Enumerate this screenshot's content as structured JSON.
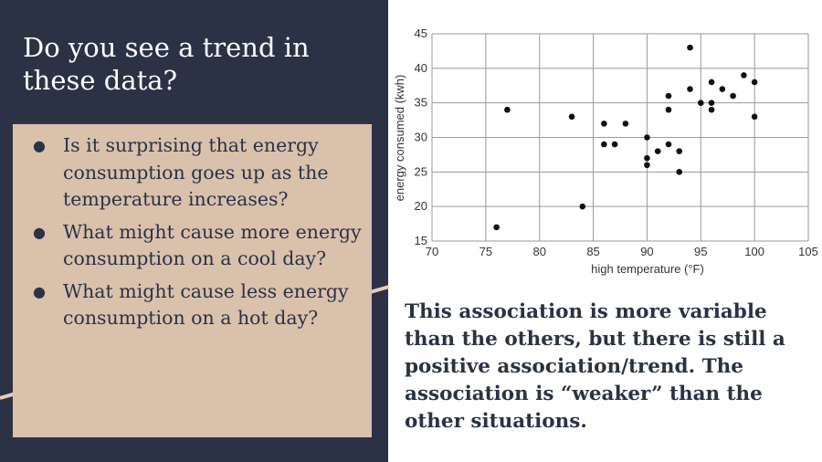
{
  "slide": {
    "title": "Do you see a trend in these data?",
    "questions": [
      "Is it surprising that energy consumption goes up as the temperature increases?",
      "What might cause more energy consumption on a cool day?",
      "What might cause less energy consumption on a hot day?"
    ],
    "conclusion": "This association is more variable than the others, but there is still a positive association/trend. The association is “weaker” than the other situations."
  },
  "colors": {
    "panel_bg": "#2b3246",
    "box_bg": "#d9c1ac",
    "accent_line": "#e8cdb5",
    "text_dark": "#2b3246"
  },
  "chart_data": {
    "type": "scatter",
    "xlabel": "high temperature (°F)",
    "ylabel": "energy consumed (kwh)",
    "xlim": [
      70,
      105
    ],
    "ylim": [
      15,
      45
    ],
    "xticks": [
      70,
      75,
      80,
      85,
      90,
      95,
      100,
      105
    ],
    "yticks": [
      15,
      20,
      25,
      30,
      35,
      40,
      45
    ],
    "grid": true,
    "points": [
      [
        76,
        17
      ],
      [
        77,
        34
      ],
      [
        83,
        33
      ],
      [
        84,
        20
      ],
      [
        86,
        32
      ],
      [
        86,
        29
      ],
      [
        87,
        29
      ],
      [
        88,
        32
      ],
      [
        90,
        30
      ],
      [
        90,
        27
      ],
      [
        90,
        26
      ],
      [
        91,
        28
      ],
      [
        92,
        36
      ],
      [
        92,
        34
      ],
      [
        92,
        29
      ],
      [
        93,
        28
      ],
      [
        93,
        25
      ],
      [
        94,
        43
      ],
      [
        94,
        37
      ],
      [
        95,
        35
      ],
      [
        96,
        38
      ],
      [
        96,
        35
      ],
      [
        96,
        34
      ],
      [
        97,
        37
      ],
      [
        98,
        36
      ],
      [
        99,
        39
      ],
      [
        100,
        38
      ],
      [
        100,
        33
      ]
    ]
  }
}
